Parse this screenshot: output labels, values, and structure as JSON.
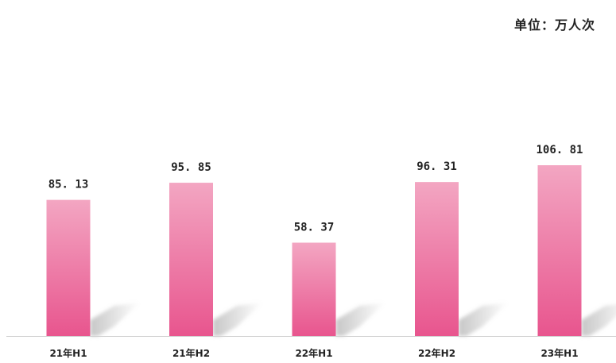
{
  "unit_label": "单位：万人次",
  "chart_data": {
    "type": "bar",
    "categories": [
      "21年H1",
      "21年H2",
      "22年H1",
      "22年H2",
      "23年H1"
    ],
    "values": [
      85.13,
      95.85,
      58.37,
      96.31,
      106.81
    ],
    "value_labels": [
      "85. 13",
      "95. 85",
      "58. 37",
      "96. 31",
      "106. 81"
    ],
    "title": "",
    "xlabel": "",
    "ylabel": "",
    "ylim": [
      0,
      115
    ],
    "grid": false,
    "legend": "none",
    "colors": {
      "bar_top": "#f3a6c2",
      "bar_bottom": "#e8558e",
      "shadow": "#c8c8c8",
      "axis": "#d0d0d0",
      "text": "#222222"
    }
  }
}
